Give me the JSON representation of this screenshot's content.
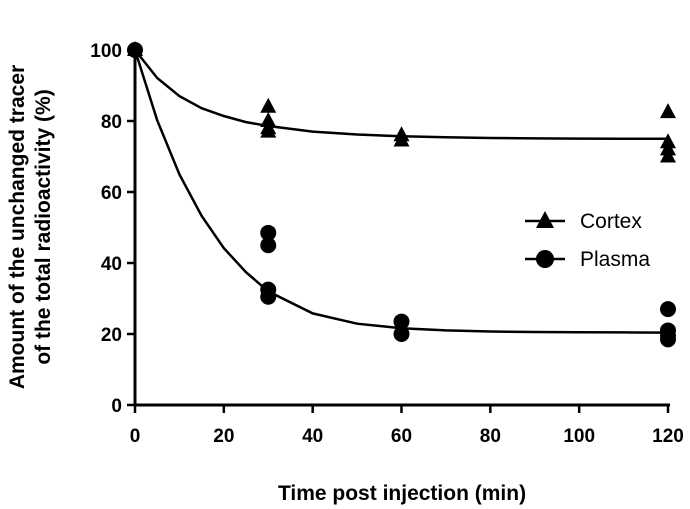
{
  "chart_data": {
    "type": "scatter",
    "title": "",
    "xlabel": "Time post injection (min)",
    "ylabel_line1": "Amount of the unchanged tracer",
    "ylabel_line2": "of the total radioactivity (%)",
    "xlim": [
      0,
      120
    ],
    "ylim": [
      0,
      100
    ],
    "x_ticks": [
      0,
      20,
      40,
      60,
      80,
      100,
      120
    ],
    "y_ticks": [
      0,
      20,
      40,
      60,
      80,
      100
    ],
    "grid": false,
    "legend_position": "right",
    "series": [
      {
        "name": "Cortex",
        "marker": "triangle",
        "points": [
          [
            0,
            100
          ],
          [
            30,
            84
          ],
          [
            30,
            80
          ],
          [
            30,
            78
          ],
          [
            30,
            77
          ],
          [
            60,
            76
          ],
          [
            60,
            74.5
          ],
          [
            120,
            82.5
          ],
          [
            120,
            74
          ],
          [
            120,
            72
          ],
          [
            120,
            70
          ]
        ],
        "fit": [
          [
            0,
            100
          ],
          [
            5,
            92.1
          ],
          [
            10,
            87.0
          ],
          [
            15,
            83.6
          ],
          [
            20,
            81.4
          ],
          [
            25,
            79.7
          ],
          [
            30,
            78.6
          ],
          [
            40,
            77.0
          ],
          [
            50,
            76.2
          ],
          [
            60,
            75.7
          ],
          [
            70,
            75.4
          ],
          [
            80,
            75.2
          ],
          [
            90,
            75.1
          ],
          [
            100,
            75.05
          ],
          [
            110,
            75.0
          ],
          [
            120,
            75.0
          ]
        ]
      },
      {
        "name": "Plasma",
        "marker": "circle",
        "points": [
          [
            0,
            100
          ],
          [
            30,
            48.5
          ],
          [
            30,
            45
          ],
          [
            30,
            32.5
          ],
          [
            30,
            30.5
          ],
          [
            60,
            23.5
          ],
          [
            60,
            20
          ],
          [
            120,
            27
          ],
          [
            120,
            21
          ],
          [
            120,
            19.5
          ],
          [
            120,
            18.5
          ]
        ],
        "fit": [
          [
            0,
            100
          ],
          [
            5,
            80.2
          ],
          [
            10,
            65.0
          ],
          [
            15,
            53.3
          ],
          [
            20,
            44.2
          ],
          [
            25,
            37.4
          ],
          [
            30,
            32.0
          ],
          [
            40,
            25.8
          ],
          [
            50,
            22.9
          ],
          [
            60,
            21.6
          ],
          [
            70,
            21.0
          ],
          [
            80,
            20.7
          ],
          [
            90,
            20.55
          ],
          [
            100,
            20.5
          ],
          [
            110,
            20.45
          ],
          [
            120,
            20.4
          ]
        ]
      }
    ]
  }
}
